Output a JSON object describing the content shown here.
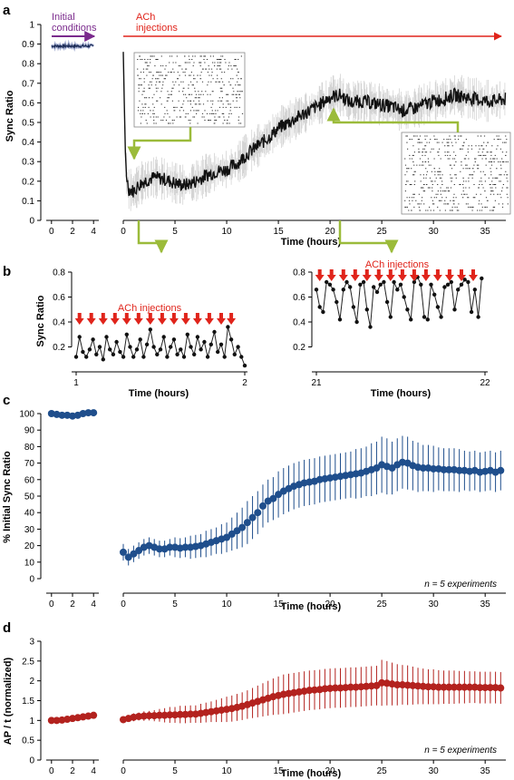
{
  "colors": {
    "ach_red": "#e0241b",
    "initial_purple": "#7a2a8c",
    "callout_green": "#9bbb3a",
    "sync_line": "#111111",
    "sync_band": "#d4d4d4",
    "initial_blue": "#5d6fb0",
    "c_blue": "#1f4e8c",
    "d_red": "#b3221e"
  },
  "panels": {
    "a": {
      "label": "a",
      "ylabel": "Sync Ratio",
      "xlabel": "Time (hours)",
      "initial_label_line1": "Initial",
      "initial_label_line2": "conditions",
      "ach_label_line1": "ACh",
      "ach_label_line2": "injections"
    },
    "b": {
      "label": "b",
      "ylabel": "Sync Ratio",
      "left_xlabel": "Time (hours)",
      "right_xlabel": "Time (hours)",
      "left_ach_label": "ACh injections",
      "right_ach_label": "ACh injections"
    },
    "c": {
      "label": "c",
      "ylabel": "% Initial Sync Ratio",
      "xlabel": "Time (hours)",
      "note": "n = 5 experiments"
    },
    "d": {
      "label": "d",
      "ylabel": "AP / t (normalized)",
      "xlabel": "Time (hours)",
      "note": "n = 5 experiments"
    }
  },
  "chart_data": [
    {
      "id": "a",
      "type": "line",
      "ylabel": "Sync Ratio",
      "xlabel": "Time (hours)",
      "ylim": [
        0,
        1
      ],
      "yticks": [
        0,
        0.1,
        0.2,
        0.3,
        0.4,
        0.5,
        0.6,
        0.7,
        0.8,
        0.9,
        1
      ],
      "initial_xlim": [
        -0.5,
        4.5
      ],
      "initial_xticks": [
        0,
        2,
        4
      ],
      "initial_value": 0.89,
      "xlim": [
        0,
        37
      ],
      "xticks": [
        0,
        5,
        10,
        15,
        20,
        25,
        30,
        35
      ],
      "series": [
        {
          "x": [
            0,
            0.15,
            0.3,
            0.5,
            1,
            1.5,
            2,
            3,
            4,
            5,
            6,
            7,
            8,
            9,
            10,
            11,
            12,
            13,
            14,
            15,
            16,
            17,
            18,
            19,
            20,
            21,
            22,
            23,
            24,
            25,
            26,
            27,
            28,
            29,
            30,
            31,
            32,
            33,
            34,
            35,
            36,
            37
          ],
          "y": [
            0.86,
            0.45,
            0.24,
            0.16,
            0.15,
            0.18,
            0.2,
            0.22,
            0.21,
            0.19,
            0.18,
            0.2,
            0.23,
            0.25,
            0.26,
            0.29,
            0.34,
            0.38,
            0.42,
            0.47,
            0.5,
            0.53,
            0.56,
            0.59,
            0.63,
            0.64,
            0.6,
            0.61,
            0.6,
            0.59,
            0.58,
            0.56,
            0.57,
            0.59,
            0.61,
            0.62,
            0.64,
            0.63,
            0.62,
            0.61,
            0.61,
            0.62
          ]
        }
      ]
    },
    {
      "id": "b-left",
      "type": "line",
      "ylabel": "Sync Ratio",
      "xlabel": "Time (hours)",
      "xlim": [
        1,
        2
      ],
      "xticks": [
        1,
        2
      ],
      "ylim": [
        0,
        0.8
      ],
      "yticks": [
        0.2,
        0.4,
        0.6,
        0.8
      ],
      "injection_times": [
        1.02,
        1.09,
        1.16,
        1.23,
        1.3,
        1.37,
        1.44,
        1.51,
        1.58,
        1.65,
        1.72,
        1.79,
        1.86,
        1.92
      ],
      "series": [
        {
          "x": [
            1,
            1.02,
            1.04,
            1.06,
            1.08,
            1.1,
            1.12,
            1.14,
            1.16,
            1.18,
            1.2,
            1.22,
            1.24,
            1.26,
            1.28,
            1.3,
            1.32,
            1.34,
            1.36,
            1.38,
            1.4,
            1.42,
            1.44,
            1.46,
            1.48,
            1.5,
            1.52,
            1.54,
            1.56,
            1.58,
            1.6,
            1.62,
            1.64,
            1.66,
            1.68,
            1.7,
            1.72,
            1.74,
            1.76,
            1.78,
            1.8,
            1.82,
            1.84,
            1.86,
            1.88,
            1.9,
            1.92,
            1.94,
            1.96,
            1.98,
            2
          ],
          "y": [
            0.12,
            0.28,
            0.16,
            0.12,
            0.18,
            0.26,
            0.14,
            0.2,
            0.1,
            0.28,
            0.18,
            0.14,
            0.24,
            0.16,
            0.12,
            0.3,
            0.2,
            0.12,
            0.18,
            0.26,
            0.12,
            0.22,
            0.34,
            0.2,
            0.14,
            0.18,
            0.28,
            0.12,
            0.2,
            0.26,
            0.14,
            0.18,
            0.12,
            0.3,
            0.2,
            0.14,
            0.28,
            0.18,
            0.24,
            0.12,
            0.22,
            0.32,
            0.16,
            0.22,
            0.12,
            0.36,
            0.26,
            0.14,
            0.2,
            0.12,
            0.05
          ]
        }
      ]
    },
    {
      "id": "b-right",
      "type": "line",
      "ylabel": "",
      "xlabel": "Time (hours)",
      "xlim": [
        21,
        22
      ],
      "xticks": [
        21,
        22
      ],
      "ylim": [
        0,
        0.8
      ],
      "yticks": [
        0.2,
        0.4,
        0.6,
        0.8
      ],
      "injection_times": [
        21.02,
        21.09,
        21.16,
        21.23,
        21.3,
        21.37,
        21.44,
        21.51,
        21.58,
        21.65,
        21.72,
        21.79,
        21.86,
        21.93
      ],
      "series": [
        {
          "x": [
            21,
            21.02,
            21.04,
            21.06,
            21.08,
            21.1,
            21.12,
            21.14,
            21.16,
            21.18,
            21.2,
            21.22,
            21.24,
            21.26,
            21.28,
            21.3,
            21.32,
            21.34,
            21.36,
            21.38,
            21.4,
            21.42,
            21.44,
            21.46,
            21.48,
            21.5,
            21.52,
            21.54,
            21.56,
            21.58,
            21.6,
            21.62,
            21.64,
            21.66,
            21.68,
            21.7,
            21.72,
            21.74,
            21.76,
            21.78,
            21.8,
            21.82,
            21.84,
            21.86,
            21.88,
            21.9,
            21.92,
            21.94,
            21.96,
            21.98
          ],
          "y": [
            0.66,
            0.52,
            0.48,
            0.72,
            0.7,
            0.66,
            0.56,
            0.42,
            0.66,
            0.72,
            0.68,
            0.52,
            0.4,
            0.7,
            0.72,
            0.5,
            0.36,
            0.68,
            0.64,
            0.7,
            0.72,
            0.56,
            0.44,
            0.72,
            0.66,
            0.7,
            0.6,
            0.5,
            0.42,
            0.72,
            0.76,
            0.7,
            0.44,
            0.42,
            0.7,
            0.62,
            0.52,
            0.44,
            0.68,
            0.7,
            0.72,
            0.5,
            0.66,
            0.7,
            0.74,
            0.72,
            0.48,
            0.66,
            0.44,
            0.75
          ]
        }
      ]
    },
    {
      "id": "c",
      "type": "scatter",
      "ylabel": "% Initial Sync Ratio",
      "xlabel": "Time (hours)",
      "ylim": [
        0,
        105
      ],
      "yticks": [
        0,
        10,
        20,
        30,
        40,
        50,
        60,
        70,
        80,
        90,
        100
      ],
      "initial_xlim": [
        -0.5,
        4.5
      ],
      "initial_xticks": [
        0,
        2,
        4
      ],
      "xlim": [
        0,
        37
      ],
      "xticks": [
        0,
        5,
        10,
        15,
        20,
        25,
        30,
        35
      ],
      "initial": {
        "x": [
          0,
          0.5,
          1,
          1.5,
          2,
          2.5,
          3,
          3.5,
          4
        ],
        "y": [
          100,
          99.5,
          99,
          99,
          98.5,
          99,
          100,
          100.5,
          100.5
        ]
      },
      "series": [
        {
          "x": [
            0,
            0.5,
            1,
            1.5,
            2,
            2.5,
            3,
            3.5,
            4,
            4.5,
            5,
            5.5,
            6,
            6.5,
            7,
            7.5,
            8,
            8.5,
            9,
            9.5,
            10,
            10.5,
            11,
            11.5,
            12,
            12.5,
            13,
            13.5,
            14,
            14.5,
            15,
            15.5,
            16,
            16.5,
            17,
            17.5,
            18,
            18.5,
            19,
            19.5,
            20,
            20.5,
            21,
            21.5,
            22,
            22.5,
            23,
            23.5,
            24,
            24.5,
            25,
            25.5,
            26,
            26.5,
            27,
            27.5,
            28,
            28.5,
            29,
            29.5,
            30,
            30.5,
            31,
            31.5,
            32,
            32.5,
            33,
            33.5,
            34,
            34.5,
            35,
            35.5,
            36,
            36.5
          ],
          "y": [
            16,
            13,
            15,
            17,
            19,
            20,
            19,
            18,
            18,
            19,
            19,
            18.5,
            19,
            19,
            19.5,
            20,
            21,
            22,
            23,
            24,
            25,
            27,
            29,
            31,
            34,
            37,
            40,
            44,
            47,
            48.5,
            51,
            53,
            54.5,
            56,
            57,
            58,
            58.5,
            59,
            60,
            60.5,
            61,
            61.5,
            62,
            62.5,
            63,
            63.5,
            64,
            65,
            66,
            67,
            69,
            68,
            67,
            69,
            70.5,
            70,
            68.5,
            67.5,
            67,
            67,
            66.5,
            66.5,
            66,
            66,
            66,
            65.5,
            65.5,
            65,
            65.5,
            64.5,
            65,
            65.5,
            64.5,
            65.5
          ]
        }
      ],
      "errors": [
        5,
        5,
        5,
        5,
        5,
        5,
        5,
        5,
        5,
        5,
        6,
        6,
        6,
        7,
        7,
        7,
        8,
        8,
        8,
        9,
        9,
        10,
        11,
        12,
        13,
        13,
        13,
        13,
        13,
        13,
        14,
        14,
        14,
        14,
        14,
        14,
        14,
        14,
        14,
        14,
        14,
        14,
        14,
        14,
        14,
        15,
        15,
        15,
        16,
        16,
        17,
        17,
        16,
        16,
        16,
        16,
        15,
        15,
        14,
        14,
        14,
        13,
        13,
        13,
        13,
        13,
        12,
        12,
        12,
        12,
        12,
        12,
        12,
        12
      ],
      "note": "n = 5 experiments"
    },
    {
      "id": "d",
      "type": "scatter",
      "ylabel": "AP / t (normalized)",
      "xlabel": "Time (hours)",
      "ylim": [
        0,
        3
      ],
      "yticks": [
        0,
        0.5,
        1,
        1.5,
        2,
        2.5,
        3
      ],
      "initial_xlim": [
        -0.5,
        4.5
      ],
      "initial_xticks": [
        0,
        2,
        4
      ],
      "xlim": [
        0,
        37
      ],
      "xticks": [
        0,
        5,
        10,
        15,
        20,
        25,
        30,
        35
      ],
      "initial": {
        "x": [
          0,
          0.5,
          1,
          1.5,
          2,
          2.5,
          3,
          3.5,
          4
        ],
        "y": [
          1,
          1,
          1.01,
          1.03,
          1.05,
          1.07,
          1.09,
          1.11,
          1.13
        ]
      },
      "series": [
        {
          "x": [
            0,
            0.5,
            1,
            1.5,
            2,
            2.5,
            3,
            3.5,
            4,
            4.5,
            5,
            5.5,
            6,
            6.5,
            7,
            7.5,
            8,
            8.5,
            9,
            9.5,
            10,
            10.5,
            11,
            11.5,
            12,
            12.5,
            13,
            13.5,
            14,
            14.5,
            15,
            15.5,
            16,
            16.5,
            17,
            17.5,
            18,
            18.5,
            19,
            19.5,
            20,
            20.5,
            21,
            21.5,
            22,
            22.5,
            23,
            23.5,
            24,
            24.5,
            25,
            25.5,
            26,
            26.5,
            27,
            27.5,
            28,
            28.5,
            29,
            29.5,
            30,
            30.5,
            31,
            31.5,
            32,
            32.5,
            33,
            33.5,
            34,
            34.5,
            35,
            35.5,
            36,
            36.5
          ],
          "y": [
            1.02,
            1.05,
            1.08,
            1.1,
            1.11,
            1.12,
            1.12,
            1.13,
            1.13,
            1.14,
            1.14,
            1.15,
            1.15,
            1.16,
            1.16,
            1.18,
            1.2,
            1.22,
            1.24,
            1.26,
            1.28,
            1.3,
            1.33,
            1.36,
            1.4,
            1.44,
            1.48,
            1.52,
            1.56,
            1.6,
            1.63,
            1.66,
            1.68,
            1.7,
            1.72,
            1.74,
            1.76,
            1.77,
            1.78,
            1.8,
            1.81,
            1.82,
            1.82,
            1.83,
            1.84,
            1.84,
            1.85,
            1.86,
            1.87,
            1.88,
            1.95,
            1.94,
            1.92,
            1.9,
            1.9,
            1.89,
            1.88,
            1.87,
            1.86,
            1.85,
            1.85,
            1.84,
            1.84,
            1.84,
            1.84,
            1.84,
            1.84,
            1.84,
            1.84,
            1.83,
            1.83,
            1.83,
            1.83,
            1.82
          ]
        }
      ],
      "errors": [
        0.08,
        0.08,
        0.1,
        0.1,
        0.12,
        0.12,
        0.14,
        0.16,
        0.18,
        0.2,
        0.2,
        0.22,
        0.22,
        0.22,
        0.22,
        0.24,
        0.25,
        0.26,
        0.28,
        0.3,
        0.32,
        0.33,
        0.34,
        0.35,
        0.36,
        0.38,
        0.4,
        0.42,
        0.44,
        0.46,
        0.48,
        0.5,
        0.5,
        0.5,
        0.5,
        0.5,
        0.5,
        0.5,
        0.5,
        0.5,
        0.5,
        0.5,
        0.5,
        0.5,
        0.5,
        0.5,
        0.5,
        0.5,
        0.5,
        0.5,
        0.58,
        0.56,
        0.54,
        0.52,
        0.5,
        0.5,
        0.48,
        0.46,
        0.45,
        0.44,
        0.44,
        0.43,
        0.42,
        0.42,
        0.42,
        0.41,
        0.41,
        0.4,
        0.4,
        0.4,
        0.4,
        0.4,
        0.4,
        0.4
      ],
      "note": "n = 5 experiments"
    }
  ]
}
